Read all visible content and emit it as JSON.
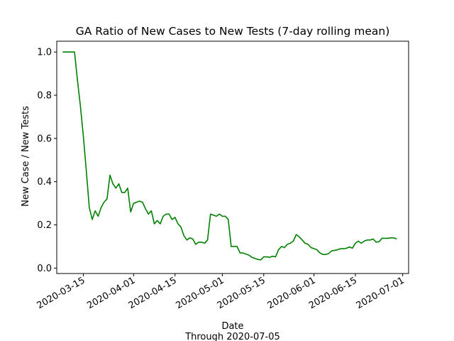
{
  "chart_data": {
    "type": "line",
    "title": "GA Ratio of New Cases to New Tests (7-day rolling mean)",
    "xlabel": "Date",
    "xlabel_sub": "Through 2020-07-05",
    "ylabel": "New Case / New Tests",
    "xlim": [
      "2020-03-06",
      "2020-07-03"
    ],
    "ylim": [
      -0.025,
      1.05
    ],
    "x_ticks": [
      "2020-03-15",
      "2020-04-01",
      "2020-04-15",
      "2020-05-01",
      "2020-05-15",
      "2020-06-01",
      "2020-06-15",
      "2020-07-01"
    ],
    "y_ticks": [
      "0.0",
      "0.2",
      "0.4",
      "0.6",
      "0.8",
      "1.0"
    ],
    "grid": false,
    "series": [
      {
        "color": "#008000",
        "points": [
          [
            "2020-03-08",
            1.0
          ],
          [
            "2020-03-09",
            1.0
          ],
          [
            "2020-03-10",
            1.0
          ],
          [
            "2020-03-11",
            1.0
          ],
          [
            "2020-03-12",
            1.0
          ],
          [
            "2020-03-13",
            0.87
          ],
          [
            "2020-03-14",
            0.75
          ],
          [
            "2020-03-15",
            0.61
          ],
          [
            "2020-03-16",
            0.45
          ],
          [
            "2020-03-17",
            0.28
          ],
          [
            "2020-03-18",
            0.225
          ],
          [
            "2020-03-19",
            0.265
          ],
          [
            "2020-03-20",
            0.24
          ],
          [
            "2020-03-21",
            0.28
          ],
          [
            "2020-03-22",
            0.305
          ],
          [
            "2020-03-23",
            0.32
          ],
          [
            "2020-03-24",
            0.43
          ],
          [
            "2020-03-25",
            0.39
          ],
          [
            "2020-03-26",
            0.37
          ],
          [
            "2020-03-27",
            0.39
          ],
          [
            "2020-03-28",
            0.35
          ],
          [
            "2020-03-29",
            0.35
          ],
          [
            "2020-03-30",
            0.37
          ],
          [
            "2020-03-31",
            0.26
          ],
          [
            "2020-04-01",
            0.3
          ],
          [
            "2020-04-02",
            0.305
          ],
          [
            "2020-04-03",
            0.31
          ],
          [
            "2020-04-04",
            0.305
          ],
          [
            "2020-04-05",
            0.275
          ],
          [
            "2020-04-06",
            0.25
          ],
          [
            "2020-04-07",
            0.265
          ],
          [
            "2020-04-08",
            0.205
          ],
          [
            "2020-04-09",
            0.22
          ],
          [
            "2020-04-10",
            0.205
          ],
          [
            "2020-04-11",
            0.24
          ],
          [
            "2020-04-12",
            0.25
          ],
          [
            "2020-04-13",
            0.25
          ],
          [
            "2020-04-14",
            0.225
          ],
          [
            "2020-04-15",
            0.235
          ],
          [
            "2020-04-16",
            0.205
          ],
          [
            "2020-04-17",
            0.19
          ],
          [
            "2020-04-18",
            0.15
          ],
          [
            "2020-04-19",
            0.13
          ],
          [
            "2020-04-20",
            0.14
          ],
          [
            "2020-04-21",
            0.135
          ],
          [
            "2020-04-22",
            0.11
          ],
          [
            "2020-04-23",
            0.12
          ],
          [
            "2020-04-24",
            0.12
          ],
          [
            "2020-04-25",
            0.115
          ],
          [
            "2020-04-26",
            0.13
          ],
          [
            "2020-04-27",
            0.25
          ],
          [
            "2020-04-28",
            0.245
          ],
          [
            "2020-04-29",
            0.24
          ],
          [
            "2020-04-30",
            0.25
          ],
          [
            "2020-05-01",
            0.24
          ],
          [
            "2020-05-02",
            0.24
          ],
          [
            "2020-05-03",
            0.225
          ],
          [
            "2020-05-04",
            0.1
          ],
          [
            "2020-05-05",
            0.1
          ],
          [
            "2020-05-06",
            0.1
          ],
          [
            "2020-05-07",
            0.07
          ],
          [
            "2020-05-08",
            0.07
          ],
          [
            "2020-05-09",
            0.065
          ],
          [
            "2020-05-10",
            0.06
          ],
          [
            "2020-05-11",
            0.05
          ],
          [
            "2020-05-12",
            0.045
          ],
          [
            "2020-05-13",
            0.04
          ],
          [
            "2020-05-14",
            0.038
          ],
          [
            "2020-05-15",
            0.052
          ],
          [
            "2020-05-16",
            0.052
          ],
          [
            "2020-05-17",
            0.05
          ],
          [
            "2020-05-18",
            0.055
          ],
          [
            "2020-05-19",
            0.052
          ],
          [
            "2020-05-20",
            0.085
          ],
          [
            "2020-05-21",
            0.1
          ],
          [
            "2020-05-22",
            0.095
          ],
          [
            "2020-05-23",
            0.11
          ],
          [
            "2020-05-24",
            0.115
          ],
          [
            "2020-05-25",
            0.125
          ],
          [
            "2020-05-26",
            0.155
          ],
          [
            "2020-05-27",
            0.145
          ],
          [
            "2020-05-28",
            0.13
          ],
          [
            "2020-05-29",
            0.115
          ],
          [
            "2020-05-30",
            0.11
          ],
          [
            "2020-05-31",
            0.095
          ],
          [
            "2020-06-01",
            0.09
          ],
          [
            "2020-06-02",
            0.085
          ],
          [
            "2020-06-03",
            0.07
          ],
          [
            "2020-06-04",
            0.063
          ],
          [
            "2020-06-05",
            0.063
          ],
          [
            "2020-06-06",
            0.068
          ],
          [
            "2020-06-07",
            0.08
          ],
          [
            "2020-06-08",
            0.082
          ],
          [
            "2020-06-09",
            0.085
          ],
          [
            "2020-06-10",
            0.09
          ],
          [
            "2020-06-11",
            0.09
          ],
          [
            "2020-06-12",
            0.092
          ],
          [
            "2020-06-13",
            0.098
          ],
          [
            "2020-06-14",
            0.092
          ],
          [
            "2020-06-15",
            0.115
          ],
          [
            "2020-06-16",
            0.125
          ],
          [
            "2020-06-17",
            0.115
          ],
          [
            "2020-06-18",
            0.125
          ],
          [
            "2020-06-19",
            0.13
          ],
          [
            "2020-06-20",
            0.13
          ],
          [
            "2020-06-21",
            0.135
          ],
          [
            "2020-06-22",
            0.12
          ],
          [
            "2020-06-23",
            0.122
          ],
          [
            "2020-06-24",
            0.138
          ],
          [
            "2020-06-25",
            0.138
          ],
          [
            "2020-06-26",
            0.138
          ],
          [
            "2020-06-27",
            0.14
          ],
          [
            "2020-06-28",
            0.14
          ],
          [
            "2020-06-29",
            0.135
          ]
        ]
      }
    ]
  }
}
